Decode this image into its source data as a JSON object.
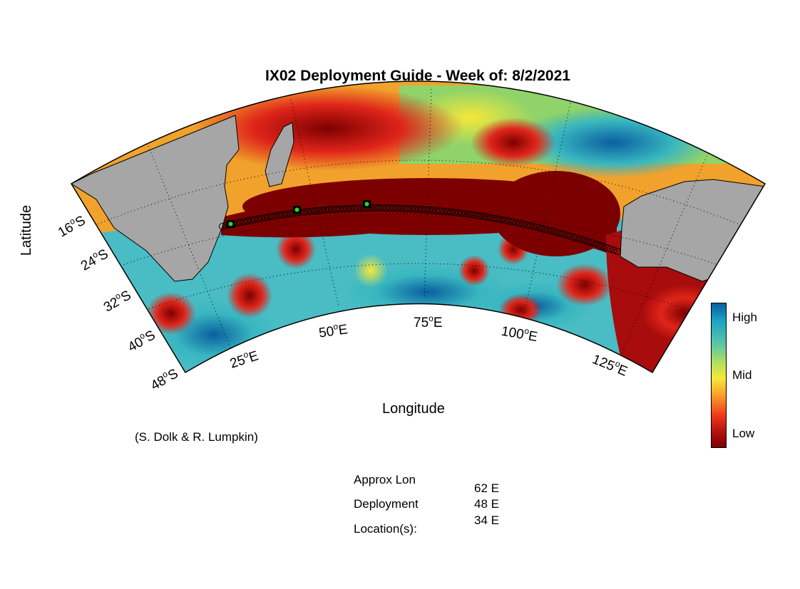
{
  "title": "IX02 Deployment Guide - Week of: 8/2/2021",
  "axes": {
    "xlabel": "Longitude",
    "ylabel": "Latitude",
    "lon_ticks": [
      {
        "value": "25",
        "hemi": "E"
      },
      {
        "value": "50",
        "hemi": "E"
      },
      {
        "value": "75",
        "hemi": "E"
      },
      {
        "value": "100",
        "hemi": "E"
      },
      {
        "value": "125",
        "hemi": "E"
      }
    ],
    "lat_ticks": [
      {
        "value": "16",
        "hemi": "S"
      },
      {
        "value": "24",
        "hemi": "S"
      },
      {
        "value": "32",
        "hemi": "S"
      },
      {
        "value": "40",
        "hemi": "S"
      },
      {
        "value": "48",
        "hemi": "S"
      }
    ]
  },
  "credit": "(S. Dolk & R. Lumpkin)",
  "colorbar": {
    "high": "High",
    "mid": "Mid",
    "low": "Low"
  },
  "deployment": {
    "label_lines": [
      "Approx Lon",
      "Deployment",
      "Location(s):"
    ],
    "locations": [
      "62 E",
      "48 E",
      "34 E"
    ]
  },
  "colors": {
    "land": "#a6a6a6",
    "low": "#7d0000",
    "high": "#0a5fa0",
    "marker": "#22dd22"
  }
}
